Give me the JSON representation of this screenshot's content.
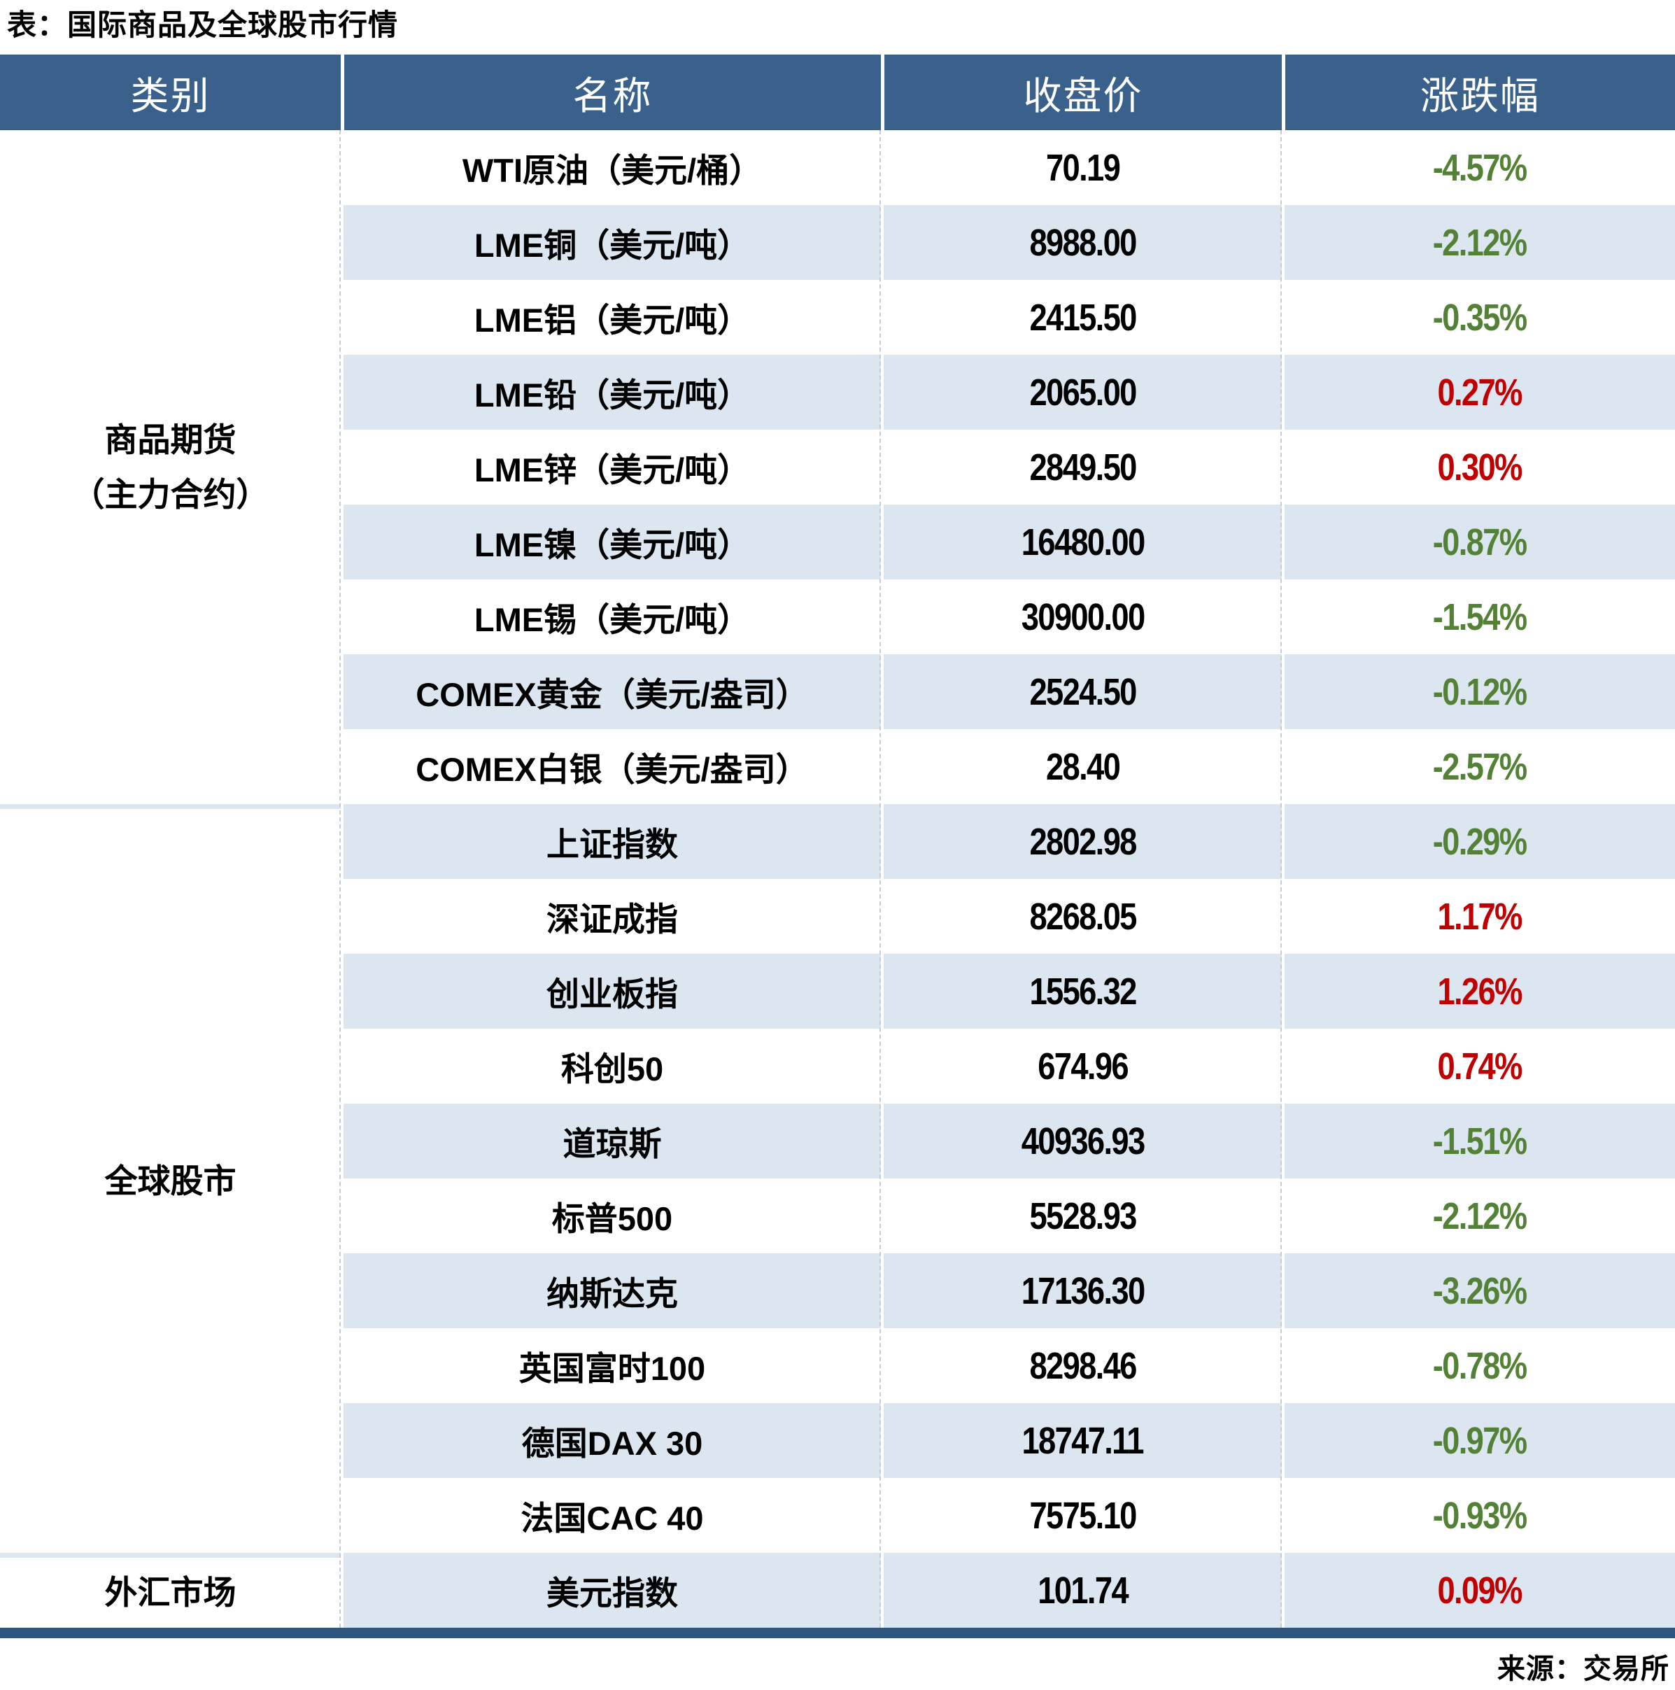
{
  "title": "表：国际商品及全球股市行情",
  "source": "来源：交易所",
  "colors": {
    "header_bg": "#3A618C",
    "row_stripe": "#DCE6F1",
    "positive_red": "#C00000",
    "negative_green": "#538135",
    "bottom_bar": "#31567D"
  },
  "chart_data": {
    "type": "table",
    "title": "国际商品及全球股市行情",
    "columns": [
      "类别",
      "名称",
      "收盘价",
      "涨跌幅"
    ],
    "sections": [
      {
        "category": "商品期货\n（主力合约）",
        "rows": [
          {
            "name": "WTI原油（美元/桶）",
            "close": "70.19",
            "change": "-4.57%",
            "dir": "down"
          },
          {
            "name": "LME铜（美元/吨）",
            "close": "8988.00",
            "change": "-2.12%",
            "dir": "down"
          },
          {
            "name": "LME铝（美元/吨）",
            "close": "2415.50",
            "change": "-0.35%",
            "dir": "down"
          },
          {
            "name": "LME铅（美元/吨）",
            "close": "2065.00",
            "change": "0.27%",
            "dir": "up"
          },
          {
            "name": "LME锌（美元/吨）",
            "close": "2849.50",
            "change": "0.30%",
            "dir": "up"
          },
          {
            "name": "LME镍（美元/吨）",
            "close": "16480.00",
            "change": "-0.87%",
            "dir": "down"
          },
          {
            "name": "LME锡（美元/吨）",
            "close": "30900.00",
            "change": "-1.54%",
            "dir": "down"
          },
          {
            "name": "COMEX黄金（美元/盎司）",
            "close": "2524.50",
            "change": "-0.12%",
            "dir": "down"
          },
          {
            "name": "COMEX白银（美元/盎司）",
            "close": "28.40",
            "change": "-2.57%",
            "dir": "down"
          }
        ]
      },
      {
        "category": "全球股市",
        "rows": [
          {
            "name": "上证指数",
            "close": "2802.98",
            "change": "-0.29%",
            "dir": "down"
          },
          {
            "name": "深证成指",
            "close": "8268.05",
            "change": "1.17%",
            "dir": "up"
          },
          {
            "name": "创业板指",
            "close": "1556.32",
            "change": "1.26%",
            "dir": "up"
          },
          {
            "name": "科创50",
            "close": "674.96",
            "change": "0.74%",
            "dir": "up"
          },
          {
            "name": "道琼斯",
            "close": "40936.93",
            "change": "-1.51%",
            "dir": "down"
          },
          {
            "name": "标普500",
            "close": "5528.93",
            "change": "-2.12%",
            "dir": "down"
          },
          {
            "name": "纳斯达克",
            "close": "17136.30",
            "change": "-3.26%",
            "dir": "down"
          },
          {
            "name": "英国富时100",
            "close": "8298.46",
            "change": "-0.78%",
            "dir": "down"
          },
          {
            "name": "德国DAX 30",
            "close": "18747.11",
            "change": "-0.97%",
            "dir": "down"
          },
          {
            "name": "法国CAC 40",
            "close": "7575.10",
            "change": "-0.93%",
            "dir": "down"
          }
        ]
      },
      {
        "category": "外汇市场",
        "rows": [
          {
            "name": "美元指数",
            "close": "101.74",
            "change": "0.09%",
            "dir": "up"
          }
        ]
      }
    ]
  }
}
